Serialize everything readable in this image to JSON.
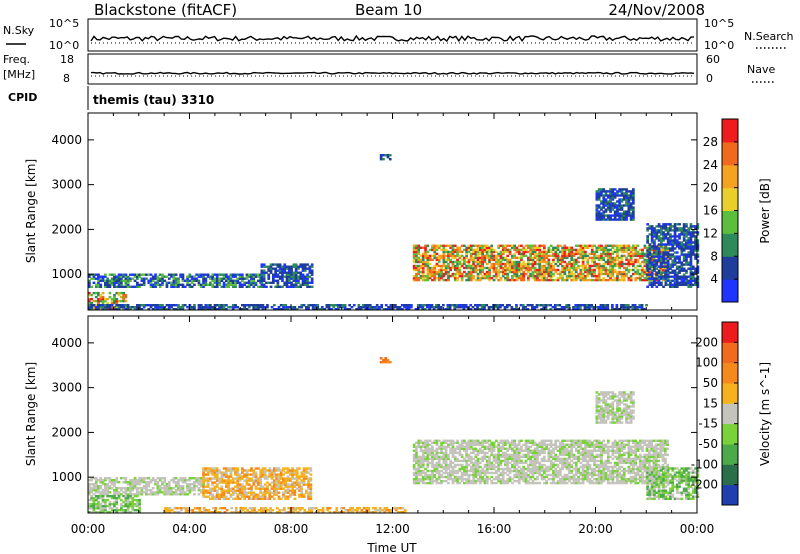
{
  "header": {
    "station": "Blackstone (fitACF)",
    "beam": "Beam 10",
    "date": "24/Nov/2008"
  },
  "chart_data": [
    {
      "type": "line",
      "panel": "noise",
      "left_labels": [
        "N.Sky"
      ],
      "right_labels": [
        "N.Search"
      ],
      "left_ticks": [
        "10^5",
        "10^0"
      ],
      "right_ticks": [
        "10^5",
        "10^0"
      ],
      "series": [
        {
          "name": "N.Sky",
          "style": "solid"
        },
        {
          "name": "N.Search",
          "style": "dotted"
        }
      ]
    },
    {
      "type": "line",
      "panel": "frequency",
      "left_labels": [
        "Freq.",
        "[MHz]"
      ],
      "right_labels": [
        "Nave"
      ],
      "left_ticks": [
        18,
        8
      ],
      "right_ticks": [
        60,
        0
      ],
      "series": [
        {
          "name": "Freq.",
          "style": "solid"
        },
        {
          "name": "Nave",
          "style": "dotted"
        }
      ]
    },
    {
      "type": "text",
      "panel": "cpid",
      "label": "CPID",
      "value": "themis (tau) 3310"
    },
    {
      "type": "heatmap",
      "panel": "power",
      "ylabel": "Slant Range [km]",
      "yticks": [
        1000,
        2000,
        3000,
        4000
      ],
      "ylim": [
        200,
        4600
      ],
      "xlim": [
        0,
        24
      ],
      "colorbar": {
        "label": "Power [dB]",
        "ticks": [
          4,
          8,
          12,
          16,
          20,
          24,
          28
        ],
        "colors": [
          "#1e35ff",
          "#1f3e9c",
          "#2e8a5a",
          "#5dbd3c",
          "#e8cf2a",
          "#f4a21f",
          "#f06a1c",
          "#ee1c1c"
        ]
      },
      "regions": [
        {
          "t": [
            0.0,
            6.8
          ],
          "r": [
            700,
            1000
          ],
          "level": "low-mid"
        },
        {
          "t": [
            0.0,
            1.5
          ],
          "r": [
            200,
            600
          ],
          "level": "high"
        },
        {
          "t": [
            0.0,
            9.0
          ],
          "r": [
            200,
            320
          ],
          "level": "low"
        },
        {
          "t": [
            6.8,
            8.8
          ],
          "r": [
            700,
            1200
          ],
          "level": "low"
        },
        {
          "t": [
            12.8,
            22.8
          ],
          "r": [
            850,
            1650
          ],
          "level": "high"
        },
        {
          "t": [
            11.5,
            11.9
          ],
          "r": [
            3550,
            3650
          ],
          "level": "low"
        },
        {
          "t": [
            20.0,
            21.5
          ],
          "r": [
            2200,
            2900
          ],
          "level": "low"
        },
        {
          "t": [
            22.0,
            24.0
          ],
          "r": [
            700,
            2100
          ],
          "level": "low"
        },
        {
          "t": [
            9.0,
            22.0
          ],
          "r": [
            200,
            320
          ],
          "level": "low"
        }
      ]
    },
    {
      "type": "heatmap",
      "panel": "velocity",
      "ylabel": "Slant Range [km]",
      "xlabel": "Time UT",
      "xticks": [
        "00:00",
        "04:00",
        "08:00",
        "12:00",
        "16:00",
        "20:00",
        "00:00"
      ],
      "yticks": [
        1000,
        2000,
        3000,
        4000
      ],
      "ylim": [
        200,
        4600
      ],
      "xlim": [
        0,
        24
      ],
      "colorbar": {
        "label": "Velocity [m s^-1]",
        "ticks": [
          200,
          100,
          50,
          15,
          -15,
          -50,
          -100,
          -200
        ],
        "colors": [
          "#1f3fb0",
          "#2a6e4a",
          "#4caa4a",
          "#79d23a",
          "#c4c4bc",
          "#f6b21e",
          "#f5891c",
          "#f26a1d",
          "#ec1c1c"
        ]
      },
      "regions": [
        {
          "t": [
            0.0,
            4.5
          ],
          "r": [
            600,
            1000
          ],
          "level": "zero"
        },
        {
          "t": [
            4.5,
            8.8
          ],
          "r": [
            500,
            1200
          ],
          "level": "neg-low"
        },
        {
          "t": [
            0.0,
            2.0
          ],
          "r": [
            200,
            600
          ],
          "level": "pos-low"
        },
        {
          "t": [
            3.0,
            12.5
          ],
          "r": [
            200,
            320
          ],
          "level": "neg-low"
        },
        {
          "t": [
            12.8,
            22.8
          ],
          "r": [
            850,
            1800
          ],
          "level": "zero"
        },
        {
          "t": [
            11.5,
            11.9
          ],
          "r": [
            3550,
            3650
          ],
          "level": "neg-mid"
        },
        {
          "t": [
            20.0,
            21.5
          ],
          "r": [
            2200,
            2900
          ],
          "level": "zero"
        },
        {
          "t": [
            22.0,
            24.0
          ],
          "r": [
            500,
            1200
          ],
          "level": "pos-low"
        }
      ]
    }
  ]
}
